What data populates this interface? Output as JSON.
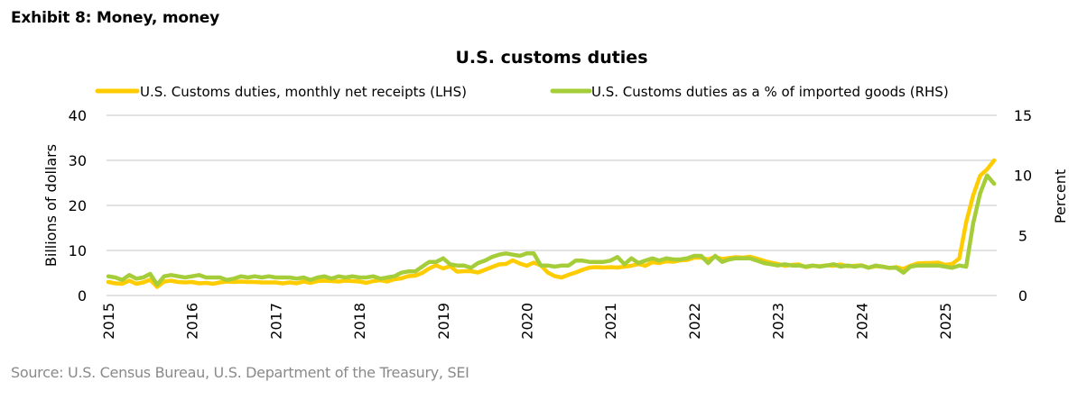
{
  "exhibit_title": "Exhibit 8: Money, money",
  "source": "Source: U.S. Census Bureau, U.S. Department of the Treasury, SEI",
  "colors": {
    "yellow": "#FFCC00",
    "green": "#A4CD39",
    "grid": "#D9D9D9"
  },
  "chart_data": {
    "type": "line",
    "title": "U.S. customs duties",
    "xlabel": "",
    "ylabel": "Billions of dollars",
    "y2label": "Percent",
    "ylim": [
      0,
      40
    ],
    "y2lim": [
      0,
      15
    ],
    "yticks": [
      "0",
      "10",
      "20",
      "30",
      "40"
    ],
    "y2ticks": [
      "0",
      "5",
      "10",
      "15"
    ],
    "xticks": [
      "2015",
      "2016",
      "2017",
      "2018",
      "2019",
      "2020",
      "2021",
      "2022",
      "2023",
      "2024",
      "2025"
    ],
    "x_start": "2015-01",
    "x_frequency": "monthly",
    "grid": true,
    "legend_position": "top",
    "series": [
      {
        "name": "U.S. Customs duties, monthly net receipts (LHS)",
        "axis": "left",
        "color": "#FFCC00",
        "values": [
          3.0,
          2.7,
          2.6,
          3.3,
          2.6,
          2.9,
          3.5,
          1.9,
          3.1,
          3.3,
          3.0,
          2.9,
          3.0,
          2.7,
          2.8,
          2.6,
          2.9,
          3.1,
          3.0,
          3.1,
          3.0,
          3.0,
          2.9,
          2.9,
          2.9,
          2.7,
          2.9,
          2.7,
          3.1,
          2.8,
          3.2,
          3.3,
          3.2,
          3.1,
          3.3,
          3.2,
          3.1,
          2.8,
          3.2,
          3.4,
          3.1,
          3.6,
          3.8,
          4.3,
          4.4,
          5.0,
          6.0,
          6.7,
          6.0,
          6.5,
          5.3,
          5.4,
          5.4,
          5.1,
          5.7,
          6.3,
          6.9,
          7.0,
          7.8,
          7.1,
          6.6,
          7.3,
          6.7,
          5.1,
          4.3,
          4.0,
          4.6,
          5.1,
          5.7,
          6.2,
          6.3,
          6.2,
          6.3,
          6.2,
          6.4,
          6.6,
          7.0,
          6.6,
          7.4,
          7.2,
          7.6,
          7.5,
          7.8,
          7.9,
          8.4,
          8.4,
          8.0,
          8.6,
          8.1,
          8.3,
          8.5,
          8.4,
          8.6,
          8.2,
          7.7,
          7.3,
          7.0,
          6.6,
          6.8,
          6.9,
          6.3,
          6.6,
          6.5,
          6.7,
          6.6,
          6.9,
          6.5,
          6.6,
          6.7,
          6.2,
          6.5,
          6.4,
          6.1,
          6.3,
          5.9,
          6.6,
          7.1,
          7.2,
          7.2,
          7.3,
          6.8,
          7.0,
          8.2,
          16.3,
          22.2,
          26.6,
          28.0,
          30.0
        ]
      },
      {
        "name": "U.S. Customs duties as a % of imported goods (RHS)",
        "axis": "right",
        "color": "#A4CD39",
        "values": [
          1.6,
          1.5,
          1.3,
          1.7,
          1.4,
          1.5,
          1.8,
          0.9,
          1.6,
          1.7,
          1.6,
          1.5,
          1.6,
          1.7,
          1.5,
          1.5,
          1.5,
          1.3,
          1.4,
          1.6,
          1.5,
          1.6,
          1.5,
          1.6,
          1.5,
          1.5,
          1.5,
          1.4,
          1.5,
          1.3,
          1.5,
          1.6,
          1.4,
          1.6,
          1.5,
          1.6,
          1.5,
          1.5,
          1.6,
          1.4,
          1.5,
          1.6,
          1.9,
          2.0,
          2.0,
          2.4,
          2.8,
          2.8,
          3.1,
          2.6,
          2.5,
          2.5,
          2.3,
          2.7,
          2.9,
          3.2,
          3.4,
          3.5,
          3.4,
          3.3,
          3.5,
          3.5,
          2.5,
          2.5,
          2.4,
          2.5,
          2.5,
          2.9,
          2.9,
          2.8,
          2.8,
          2.8,
          2.9,
          3.2,
          2.6,
          3.1,
          2.7,
          2.9,
          3.1,
          2.9,
          3.1,
          3.0,
          3.0,
          3.1,
          3.3,
          3.3,
          2.7,
          3.3,
          2.8,
          3.0,
          3.1,
          3.1,
          3.1,
          2.9,
          2.7,
          2.6,
          2.5,
          2.6,
          2.5,
          2.5,
          2.4,
          2.5,
          2.4,
          2.5,
          2.6,
          2.4,
          2.5,
          2.4,
          2.5,
          2.3,
          2.5,
          2.4,
          2.3,
          2.3,
          1.9,
          2.4,
          2.5,
          2.5,
          2.5,
          2.5,
          2.4,
          2.3,
          2.5,
          2.4,
          6.0,
          8.5,
          10.0,
          9.3
        ]
      }
    ]
  }
}
